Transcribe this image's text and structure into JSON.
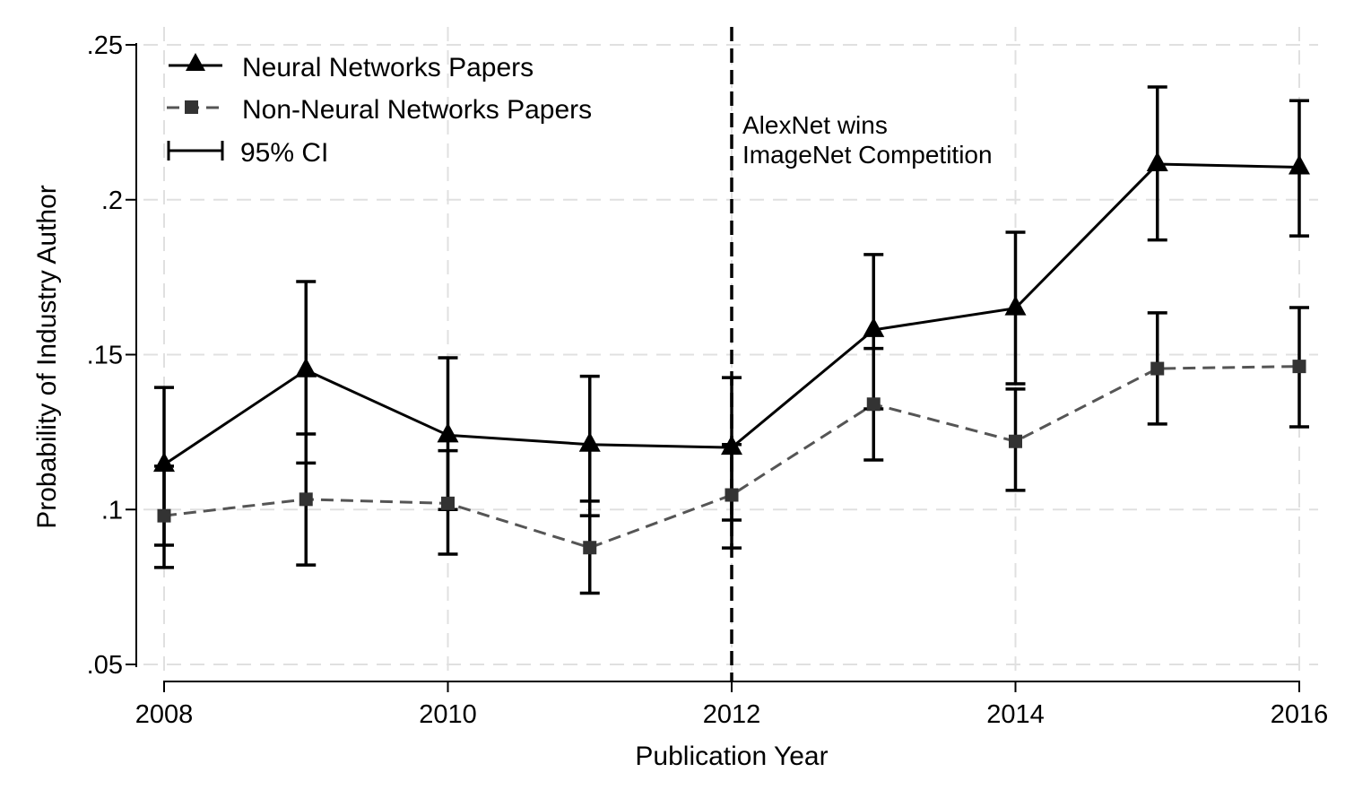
{
  "chart_data": {
    "type": "line",
    "title": "",
    "xlabel": "Publication Year",
    "ylabel": "Probability of Industry Author",
    "x": [
      2008,
      2009,
      2010,
      2011,
      2012,
      2013,
      2014,
      2015,
      2016
    ],
    "xticks": [
      2008,
      2010,
      2012,
      2014,
      2016
    ],
    "xtick_labels": [
      "2008",
      "2010",
      "2012",
      "2014",
      "2016"
    ],
    "yticks": [
      0.05,
      0.1,
      0.15,
      0.2,
      0.25
    ],
    "ytick_labels": [
      ".05",
      ".1",
      ".15",
      ".2",
      ".25"
    ],
    "xlim": [
      2008,
      2016
    ],
    "ylim": [
      0.05,
      0.25
    ],
    "grid": true,
    "legend_position": "upper left",
    "series": [
      {
        "name": "Neural Networks Papers",
        "marker": "triangle",
        "line": "solid",
        "color": "#000000",
        "values": [
          0.1145,
          0.145,
          0.124,
          0.121,
          0.12,
          0.158,
          0.165,
          0.2115,
          0.2105
        ],
        "ci_lower": [
          0.0885,
          0.115,
          0.1,
          0.098,
          0.0966,
          0.1325,
          0.1406,
          0.187,
          0.1883
        ],
        "ci_upper": [
          0.1394,
          0.1736,
          0.149,
          0.143,
          0.1426,
          0.1823,
          0.1895,
          0.2364,
          0.232
        ]
      },
      {
        "name": "Non-Neural Networks Papers",
        "marker": "square",
        "line": "dashed",
        "color": "#4d4d4d",
        "values": [
          0.098,
          0.1033,
          0.102,
          0.0877,
          0.1047,
          0.134,
          0.122,
          0.1455,
          0.1462
        ],
        "ci_lower": [
          0.0813,
          0.0821,
          0.0856,
          0.073,
          0.0876,
          0.116,
          0.1062,
          0.1276,
          0.1267
        ],
        "ci_upper": [
          0.114,
          0.1244,
          0.119,
          0.1027,
          0.121,
          0.152,
          0.1389,
          0.1635,
          0.1652
        ]
      }
    ],
    "legend": [
      "Neural Networks Papers",
      "Non-Neural Networks Papers",
      "95% CI"
    ],
    "annotations": [
      {
        "type": "vline",
        "x": 2012,
        "style": "dashed",
        "text": [
          "AlexNet wins",
          "ImageNet Competition"
        ]
      }
    ]
  }
}
